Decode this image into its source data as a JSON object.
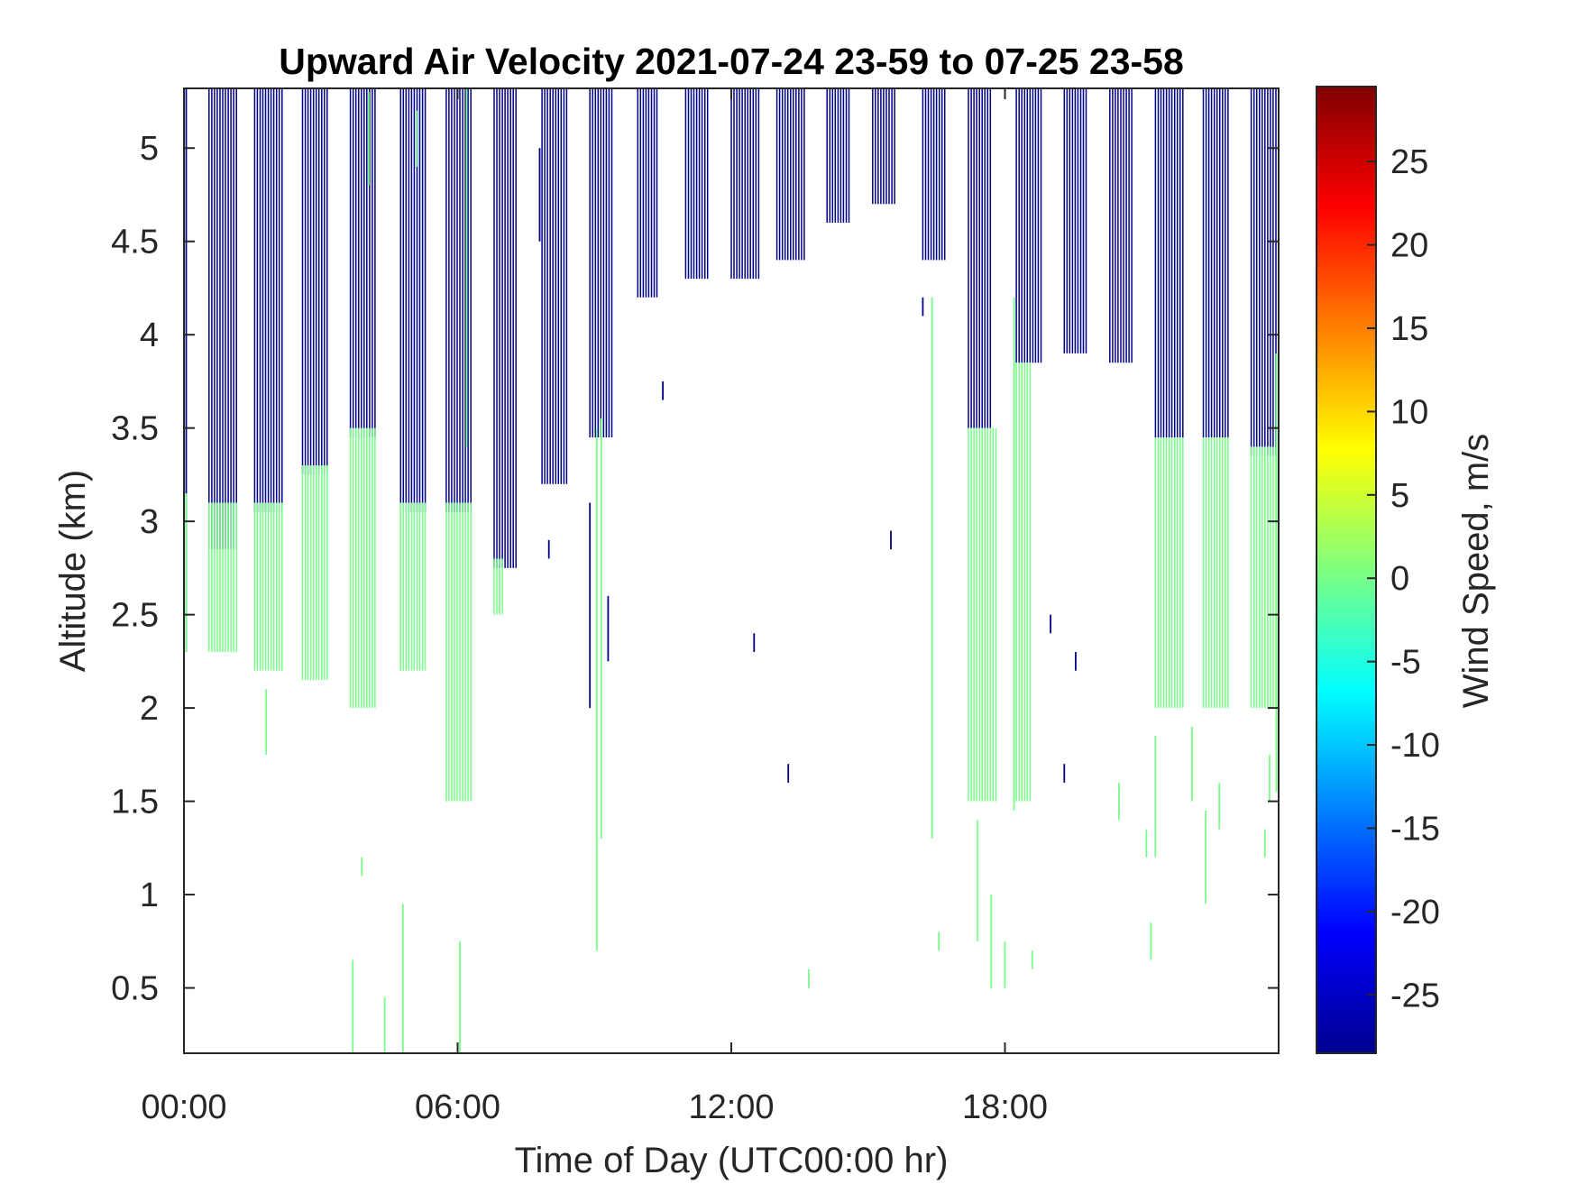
{
  "chart_data": {
    "type": "heatmap",
    "title": "Upward Air Velocity 2021-07-24 23-59 to 07-25 23-58",
    "xlabel": "Time of Day (UTC00:00 hr)",
    "ylabel": "Altitude (km)",
    "colorbar_label": "Wind Speed, m/s",
    "xlim": [
      0,
      24
    ],
    "ylim": [
      0.15,
      5.32
    ],
    "clim": [
      -28.5,
      29.5
    ],
    "x_ticks": [
      {
        "value": 0,
        "label": "00:00"
      },
      {
        "value": 6,
        "label": "06:00"
      },
      {
        "value": 12,
        "label": "12:00"
      },
      {
        "value": 18,
        "label": "18:00"
      }
    ],
    "y_ticks": [
      {
        "value": 0.5,
        "label": "0.5"
      },
      {
        "value": 1,
        "label": "1"
      },
      {
        "value": 1.5,
        "label": "1.5"
      },
      {
        "value": 2,
        "label": "2"
      },
      {
        "value": 2.5,
        "label": "2.5"
      },
      {
        "value": 3,
        "label": "3"
      },
      {
        "value": 3.5,
        "label": "3.5"
      },
      {
        "value": 4,
        "label": "4"
      },
      {
        "value": 4.5,
        "label": "4.5"
      },
      {
        "value": 5,
        "label": "5"
      }
    ],
    "colorbar_ticks": [
      {
        "value": 25,
        "label": "25"
      },
      {
        "value": 20,
        "label": "20"
      },
      {
        "value": 15,
        "label": "15"
      },
      {
        "value": 10,
        "label": "10"
      },
      {
        "value": 5,
        "label": "5"
      },
      {
        "value": 0,
        "label": "0"
      },
      {
        "value": -5,
        "label": "-5"
      },
      {
        "value": -10,
        "label": "-10"
      },
      {
        "value": -15,
        "label": "-15"
      },
      {
        "value": -20,
        "label": "-20"
      },
      {
        "value": -25,
        "label": "-25"
      }
    ],
    "colormap": "jet",
    "grid": false,
    "blocks": [
      {
        "x0": 0.55,
        "x1": 1.15,
        "bottom": 2.85,
        "top": 5.32,
        "value": -28
      },
      {
        "x0": 0.55,
        "x1": 1.15,
        "bottom": 2.3,
        "top": 3.1,
        "value": 0
      },
      {
        "x0": 1.55,
        "x1": 2.15,
        "bottom": 3.05,
        "top": 5.32,
        "value": -28
      },
      {
        "x0": 1.55,
        "x1": 2.15,
        "bottom": 2.2,
        "top": 3.1,
        "value": 0
      },
      {
        "x0": 2.6,
        "x1": 3.15,
        "bottom": 3.25,
        "top": 5.32,
        "value": -28
      },
      {
        "x0": 2.6,
        "x1": 3.15,
        "bottom": 2.15,
        "top": 3.3,
        "value": 0
      },
      {
        "x0": 3.65,
        "x1": 4.2,
        "bottom": 3.45,
        "top": 5.32,
        "value": -28
      },
      {
        "x0": 3.65,
        "x1": 4.2,
        "bottom": 2.0,
        "top": 3.5,
        "value": 0
      },
      {
        "x0": 4.75,
        "x1": 5.3,
        "bottom": 3.05,
        "top": 5.32,
        "value": -28
      },
      {
        "x0": 4.75,
        "x1": 5.3,
        "bottom": 2.2,
        "top": 3.1,
        "value": 0
      },
      {
        "x0": 5.75,
        "x1": 6.3,
        "bottom": 3.05,
        "top": 5.32,
        "value": -28
      },
      {
        "x0": 5.75,
        "x1": 6.3,
        "bottom": 1.5,
        "top": 3.1,
        "value": 0
      },
      {
        "x0": 6.8,
        "x1": 7.3,
        "bottom": 2.75,
        "top": 5.32,
        "value": -28
      },
      {
        "x0": 6.8,
        "x1": 7.0,
        "bottom": 2.5,
        "top": 2.8,
        "value": 0
      },
      {
        "x0": 7.85,
        "x1": 8.4,
        "bottom": 3.2,
        "top": 5.32,
        "value": -28
      },
      {
        "x0": 8.9,
        "x1": 9.4,
        "bottom": 3.45,
        "top": 5.32,
        "value": -28
      },
      {
        "x0": 9.95,
        "x1": 10.4,
        "bottom": 4.2,
        "top": 5.32,
        "value": -28
      },
      {
        "x0": 11.0,
        "x1": 11.5,
        "bottom": 4.3,
        "top": 5.32,
        "value": -28
      },
      {
        "x0": 12.0,
        "x1": 12.6,
        "bottom": 4.3,
        "top": 5.32,
        "value": -28
      },
      {
        "x0": 13.0,
        "x1": 13.6,
        "bottom": 4.4,
        "top": 5.32,
        "value": -28
      },
      {
        "x0": 14.1,
        "x1": 14.6,
        "bottom": 4.6,
        "top": 5.32,
        "value": -28
      },
      {
        "x0": 15.1,
        "x1": 15.6,
        "bottom": 4.7,
        "top": 5.32,
        "value": -28
      },
      {
        "x0": 16.2,
        "x1": 16.7,
        "bottom": 4.4,
        "top": 5.32,
        "value": -28
      },
      {
        "x0": 17.2,
        "x1": 17.7,
        "bottom": 3.5,
        "top": 5.32,
        "value": -28
      },
      {
        "x0": 17.2,
        "x1": 17.8,
        "bottom": 1.5,
        "top": 3.5,
        "value": 0
      },
      {
        "x0": 18.25,
        "x1": 18.8,
        "bottom": 3.85,
        "top": 5.32,
        "value": -28
      },
      {
        "x0": 18.25,
        "x1": 18.6,
        "bottom": 1.5,
        "top": 3.85,
        "value": 0
      },
      {
        "x0": 19.3,
        "x1": 19.8,
        "bottom": 3.9,
        "top": 5.32,
        "value": -28
      },
      {
        "x0": 20.3,
        "x1": 20.8,
        "bottom": 3.85,
        "top": 5.32,
        "value": -28
      },
      {
        "x0": 21.3,
        "x1": 21.9,
        "bottom": 3.45,
        "top": 5.32,
        "value": -28
      },
      {
        "x0": 21.3,
        "x1": 21.9,
        "bottom": 2.0,
        "top": 3.45,
        "value": 0
      },
      {
        "x0": 22.35,
        "x1": 22.9,
        "bottom": 3.45,
        "top": 5.32,
        "value": -28
      },
      {
        "x0": 22.35,
        "x1": 22.9,
        "bottom": 2.0,
        "top": 3.45,
        "value": 0
      },
      {
        "x0": 23.4,
        "x1": 23.95,
        "bottom": 3.35,
        "top": 5.32,
        "value": -28
      },
      {
        "x0": 23.4,
        "x1": 23.95,
        "bottom": 2.0,
        "top": 3.4,
        "value": 0
      }
    ],
    "segments": [
      {
        "x": 0.05,
        "bottom": 2.3,
        "top": 5.32,
        "value": -28
      },
      {
        "x": 0.05,
        "bottom": 2.3,
        "top": 3.15,
        "value": 0
      },
      {
        "x": 1.8,
        "bottom": 1.75,
        "top": 2.1,
        "value": 0
      },
      {
        "x": 3.7,
        "bottom": 0.15,
        "top": 0.65,
        "value": 0
      },
      {
        "x": 3.9,
        "bottom": 1.1,
        "top": 1.2,
        "value": 0
      },
      {
        "x": 4.05,
        "bottom": 4.8,
        "top": 5.3,
        "value": 0
      },
      {
        "x": 4.4,
        "bottom": 0.15,
        "top": 0.45,
        "value": 0
      },
      {
        "x": 4.8,
        "bottom": 0.15,
        "top": 0.95,
        "value": 0
      },
      {
        "x": 5.1,
        "bottom": 4.9,
        "top": 5.2,
        "value": 0
      },
      {
        "x": 6.05,
        "bottom": 0.15,
        "top": 0.75,
        "value": 0
      },
      {
        "x": 6.2,
        "bottom": 3.4,
        "top": 5.32,
        "value": 0
      },
      {
        "x": 7.8,
        "bottom": 4.5,
        "top": 5.0,
        "value": -28
      },
      {
        "x": 8.0,
        "bottom": 2.8,
        "top": 2.9,
        "value": -28
      },
      {
        "x": 8.9,
        "bottom": 2.0,
        "top": 3.1,
        "value": -28
      },
      {
        "x": 9.05,
        "bottom": 0.7,
        "top": 3.5,
        "value": 0
      },
      {
        "x": 9.15,
        "bottom": 1.3,
        "top": 3.55,
        "value": 0
      },
      {
        "x": 9.3,
        "bottom": 2.25,
        "top": 2.6,
        "value": -28
      },
      {
        "x": 10.5,
        "bottom": 3.65,
        "top": 3.75,
        "value": -28
      },
      {
        "x": 12.5,
        "bottom": 2.3,
        "top": 2.4,
        "value": -28
      },
      {
        "x": 13.25,
        "bottom": 1.6,
        "top": 1.7,
        "value": -28
      },
      {
        "x": 13.7,
        "bottom": 0.5,
        "top": 0.6,
        "value": 0
      },
      {
        "x": 15.5,
        "bottom": 2.85,
        "top": 2.95,
        "value": -28
      },
      {
        "x": 16.2,
        "bottom": 4.1,
        "top": 4.2,
        "value": -28
      },
      {
        "x": 16.4,
        "bottom": 1.3,
        "top": 4.2,
        "value": 0
      },
      {
        "x": 16.55,
        "bottom": 0.7,
        "top": 0.8,
        "value": 0
      },
      {
        "x": 17.4,
        "bottom": 0.75,
        "top": 1.4,
        "value": 0
      },
      {
        "x": 17.7,
        "bottom": 0.5,
        "top": 1.0,
        "value": 0
      },
      {
        "x": 18.0,
        "bottom": 0.5,
        "top": 0.75,
        "value": 0
      },
      {
        "x": 18.2,
        "bottom": 1.45,
        "top": 4.2,
        "value": 0
      },
      {
        "x": 18.6,
        "bottom": 0.6,
        "top": 0.7,
        "value": 0
      },
      {
        "x": 19.0,
        "bottom": 2.4,
        "top": 2.5,
        "value": -28
      },
      {
        "x": 19.3,
        "bottom": 1.6,
        "top": 1.7,
        "value": -28
      },
      {
        "x": 19.55,
        "bottom": 2.2,
        "top": 2.3,
        "value": -28
      },
      {
        "x": 20.5,
        "bottom": 1.4,
        "top": 1.6,
        "value": 0
      },
      {
        "x": 21.1,
        "bottom": 1.2,
        "top": 1.35,
        "value": 0
      },
      {
        "x": 21.2,
        "bottom": 0.65,
        "top": 0.85,
        "value": 0
      },
      {
        "x": 21.3,
        "bottom": 1.2,
        "top": 1.85,
        "value": 0
      },
      {
        "x": 22.1,
        "bottom": 1.5,
        "top": 1.9,
        "value": 0
      },
      {
        "x": 22.4,
        "bottom": 0.95,
        "top": 1.45,
        "value": 0
      },
      {
        "x": 22.7,
        "bottom": 1.35,
        "top": 1.6,
        "value": 0
      },
      {
        "x": 23.7,
        "bottom": 1.2,
        "top": 1.35,
        "value": 0
      },
      {
        "x": 23.8,
        "bottom": 1.5,
        "top": 1.75,
        "value": 0
      },
      {
        "x": 23.95,
        "bottom": 1.55,
        "top": 3.9,
        "value": 0
      }
    ]
  }
}
